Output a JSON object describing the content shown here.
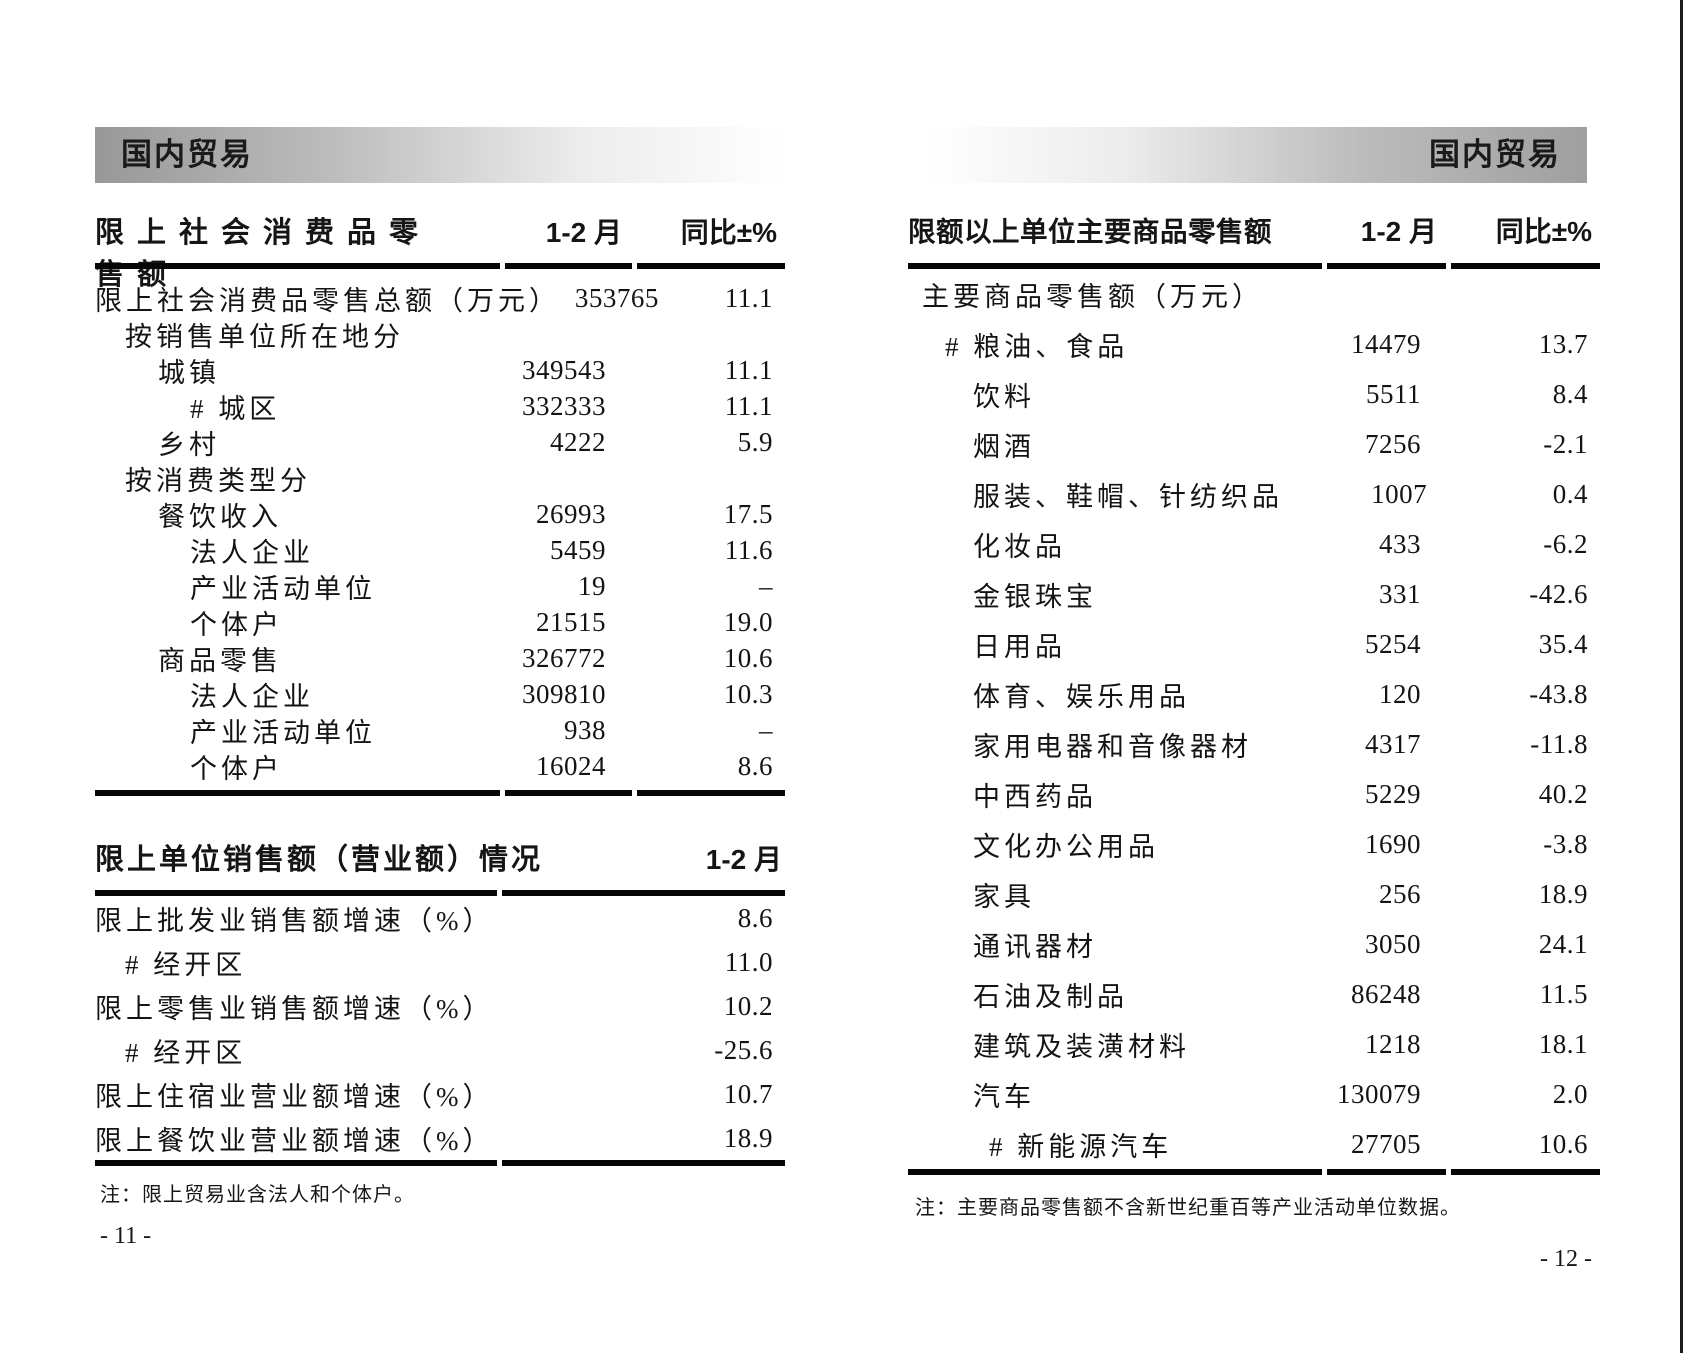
{
  "page_left": {
    "banner": "国内贸易",
    "table1": {
      "title": "限上社会消费品零售额",
      "col_period": "1-2 月",
      "col_yoy": "同比±%",
      "rows": [
        {
          "label": "限上社会消费品零售总额（万元）",
          "indent": 0,
          "value": "353765",
          "pct": "11.1"
        },
        {
          "label": "按销售单位所在地分",
          "indent": 1,
          "value": "",
          "pct": ""
        },
        {
          "label": "城镇",
          "indent": 2,
          "value": "349543",
          "pct": "11.1"
        },
        {
          "label": "# 城区",
          "indent": 3,
          "value": "332333",
          "pct": "11.1"
        },
        {
          "label": "乡村",
          "indent": 2,
          "value": "4222",
          "pct": "5.9"
        },
        {
          "label": "按消费类型分",
          "indent": 1,
          "value": "",
          "pct": ""
        },
        {
          "label": "餐饮收入",
          "indent": 2,
          "value": "26993",
          "pct": "17.5"
        },
        {
          "label": "法人企业",
          "indent": 3,
          "value": "5459",
          "pct": "11.6"
        },
        {
          "label": "产业活动单位",
          "indent": 3,
          "value": "19",
          "pct": "–"
        },
        {
          "label": "个体户",
          "indent": 3,
          "value": "21515",
          "pct": "19.0"
        },
        {
          "label": "商品零售",
          "indent": 2,
          "value": "326772",
          "pct": "10.6"
        },
        {
          "label": "法人企业",
          "indent": 3,
          "value": "309810",
          "pct": "10.3"
        },
        {
          "label": "产业活动单位",
          "indent": 3,
          "value": "938",
          "pct": "–"
        },
        {
          "label": "个体户",
          "indent": 3,
          "value": "16024",
          "pct": "8.6"
        }
      ]
    },
    "table2": {
      "title": "限上单位销售额（营业额）情况",
      "col_period": "1-2 月",
      "rows": [
        {
          "label": "限上批发业销售额增速（%）",
          "indent": 0,
          "value": "8.6"
        },
        {
          "label": "# 经开区",
          "indent": 1,
          "value": "11.0"
        },
        {
          "label": "限上零售业销售额增速（%）",
          "indent": 0,
          "value": "10.2"
        },
        {
          "label": "# 经开区",
          "indent": 1,
          "value": "-25.6"
        },
        {
          "label": "限上住宿业营业额增速（%）",
          "indent": 0,
          "value": "10.7"
        },
        {
          "label": "限上餐饮业营业额增速（%）",
          "indent": 0,
          "value": "18.9"
        }
      ]
    },
    "note": "注：限上贸易业含法人和个体户。",
    "page_number": "- 11 -"
  },
  "page_right": {
    "banner": "国内贸易",
    "table": {
      "title": "限额以上单位主要商品零售额",
      "col_period": "1-2 月",
      "col_yoy": "同比±%",
      "rows": [
        {
          "label": "主要商品零售额（万元）",
          "indent": 0,
          "value": "",
          "pct": ""
        },
        {
          "label": "# 粮油、食品",
          "indent": 1,
          "value": "14479",
          "pct": "13.7"
        },
        {
          "label": "饮料",
          "indent": 2,
          "value": "5511",
          "pct": "8.4"
        },
        {
          "label": "烟酒",
          "indent": 2,
          "value": "7256",
          "pct": "-2.1"
        },
        {
          "label": "服装、鞋帽、针纺织品",
          "indent": 2,
          "value": "1007",
          "pct": "0.4"
        },
        {
          "label": "化妆品",
          "indent": 2,
          "value": "433",
          "pct": "-6.2"
        },
        {
          "label": "金银珠宝",
          "indent": 2,
          "value": "331",
          "pct": "-42.6"
        },
        {
          "label": "日用品",
          "indent": 2,
          "value": "5254",
          "pct": "35.4"
        },
        {
          "label": "体育、娱乐用品",
          "indent": 2,
          "value": "120",
          "pct": "-43.8"
        },
        {
          "label": "家用电器和音像器材",
          "indent": 2,
          "value": "4317",
          "pct": "-11.8"
        },
        {
          "label": "中西药品",
          "indent": 2,
          "value": "5229",
          "pct": "40.2"
        },
        {
          "label": "文化办公用品",
          "indent": 2,
          "value": "1690",
          "pct": "-3.8"
        },
        {
          "label": "家具",
          "indent": 2,
          "value": "256",
          "pct": "18.9"
        },
        {
          "label": "通讯器材",
          "indent": 2,
          "value": "3050",
          "pct": "24.1"
        },
        {
          "label": "石油及制品",
          "indent": 2,
          "value": "86248",
          "pct": "11.5"
        },
        {
          "label": "建筑及装潢材料",
          "indent": 2,
          "value": "1218",
          "pct": "18.1"
        },
        {
          "label": "汽车",
          "indent": 2,
          "value": "130079",
          "pct": "2.0"
        },
        {
          "label": "# 新能源汽车",
          "indent": 3,
          "value": "27705",
          "pct": "10.6"
        }
      ]
    },
    "note": "注：主要商品零售额不含新世纪重百等产业活动单位数据。",
    "page_number": "- 12 -"
  }
}
